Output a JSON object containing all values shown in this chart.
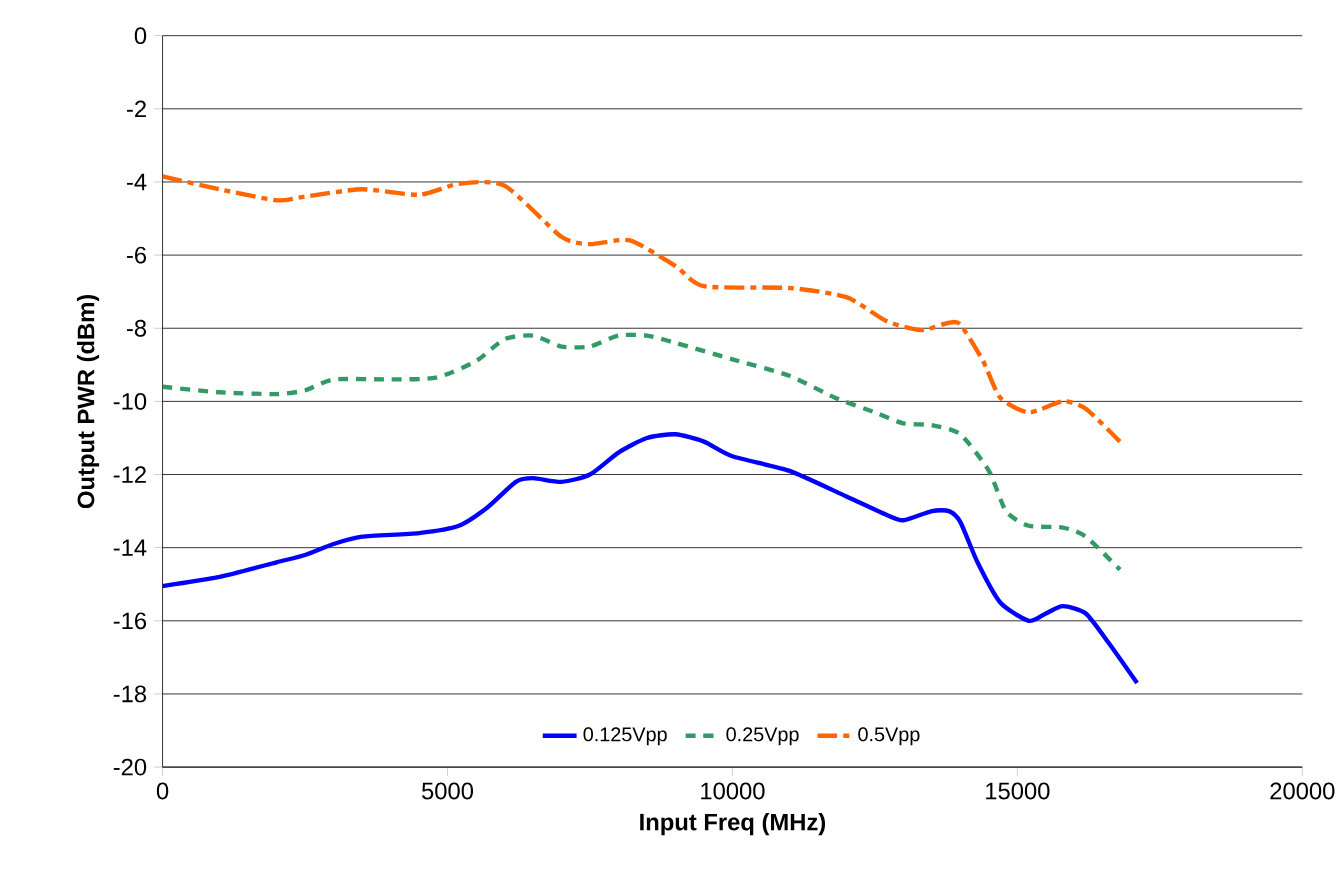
{
  "chart_data": {
    "type": "line",
    "xlabel": "Input Freq (MHz)",
    "ylabel": "Output PWR (dBm)",
    "xlim": [
      0,
      20000
    ],
    "xticks": [
      0,
      5000,
      10000,
      15000,
      20000
    ],
    "ylim": [
      -20,
      0
    ],
    "yticks": [
      -20,
      -18,
      -16,
      -14,
      -12,
      -10,
      -8,
      -6,
      -4,
      -2,
      0
    ],
    "grid": "y",
    "legend": "bottom",
    "marker": "none",
    "series": [
      {
        "name": "0.125Vpp",
        "color": "#0000ff",
        "line_style": "solid",
        "x": [
          0,
          1000,
          2000,
          2500,
          3000,
          3500,
          4500,
          5200,
          5700,
          6200,
          6500,
          7000,
          7500,
          8000,
          8500,
          9000,
          9500,
          10000,
          11000,
          12000,
          12700,
          13000,
          13500,
          13800,
          14000,
          14300,
          14700,
          15200,
          15500,
          15800,
          16200,
          16600,
          17100
        ],
        "values": [
          -15.05,
          -14.8,
          -14.4,
          -14.2,
          -13.9,
          -13.7,
          -13.6,
          -13.4,
          -12.9,
          -12.2,
          -12.1,
          -12.2,
          -12.0,
          -11.4,
          -11.0,
          -10.9,
          -11.1,
          -11.5,
          -11.9,
          -12.6,
          -13.1,
          -13.25,
          -13.0,
          -13.0,
          -13.3,
          -14.4,
          -15.5,
          -16.0,
          -15.8,
          -15.6,
          -15.8,
          -16.6,
          -17.7
        ]
      },
      {
        "name": "0.25Vpp",
        "color": "#339966",
        "line_style": "dashed",
        "x": [
          0,
          1000,
          2000,
          2500,
          3000,
          4000,
          4800,
          5500,
          6000,
          6500,
          7000,
          7500,
          8000,
          8500,
          9000,
          10000,
          11000,
          11800,
          12500,
          13000,
          13500,
          14000,
          14500,
          14800,
          15200,
          15800,
          16200,
          16800
        ],
        "values": [
          -9.6,
          -9.75,
          -9.8,
          -9.7,
          -9.4,
          -9.4,
          -9.35,
          -8.9,
          -8.3,
          -8.2,
          -8.5,
          -8.5,
          -8.2,
          -8.2,
          -8.4,
          -8.85,
          -9.3,
          -9.9,
          -10.3,
          -10.6,
          -10.65,
          -10.9,
          -11.9,
          -13.0,
          -13.4,
          -13.45,
          -13.7,
          -14.6
        ]
      },
      {
        "name": "0.5Vpp",
        "color": "#ff6600",
        "line_style": "dashdot",
        "x": [
          0,
          1000,
          2000,
          2500,
          3500,
          4500,
          5200,
          6000,
          7000,
          7500,
          8200,
          9000,
          9500,
          11000,
          12000,
          12700,
          13300,
          13800,
          14000,
          14400,
          14700,
          15200,
          15800,
          16200,
          16800
        ],
        "values": [
          -3.85,
          -4.2,
          -4.5,
          -4.4,
          -4.2,
          -4.35,
          -4.05,
          -4.1,
          -5.5,
          -5.7,
          -5.6,
          -6.3,
          -6.85,
          -6.9,
          -7.15,
          -7.8,
          -8.05,
          -7.85,
          -7.9,
          -8.9,
          -9.9,
          -10.3,
          -10.0,
          -10.2,
          -11.1
        ]
      }
    ]
  }
}
